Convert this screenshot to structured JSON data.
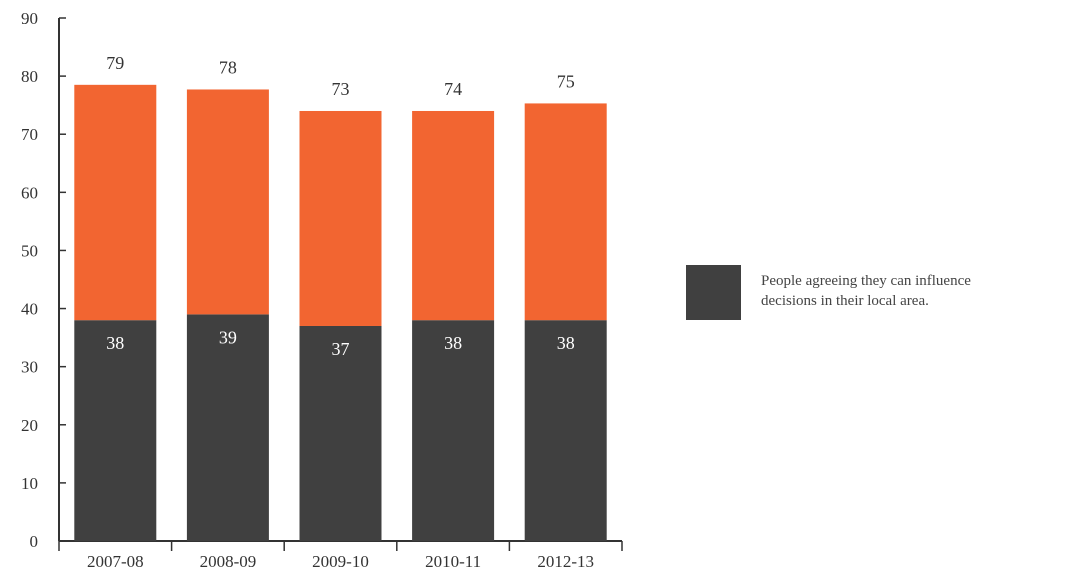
{
  "chart_data": {
    "type": "bar",
    "stacked": true,
    "categories": [
      "2007-08",
      "2008-09",
      "2009-10",
      "2010-11",
      "2012-13"
    ],
    "ylim": [
      0,
      90
    ],
    "yticks": [
      0,
      10,
      20,
      30,
      40,
      50,
      60,
      70,
      80,
      90
    ],
    "grid": false,
    "legend_position": "right",
    "series": [
      {
        "name": "People agreeing they can influence decisions in their local area.",
        "color": "#404040",
        "values": [
          38,
          39,
          37,
          38,
          38
        ],
        "labels": [
          "38",
          "39",
          "37",
          "38",
          "38"
        ]
      },
      {
        "color": "#F26531",
        "values": [
          40.5,
          38.7,
          37,
          36,
          37.3
        ],
        "total_labels": [
          "79",
          "78",
          "73",
          "74",
          "75"
        ]
      }
    ],
    "legend": {
      "lines": [
        "People agreeing they can influence",
        "decisions in their local area."
      ]
    }
  }
}
